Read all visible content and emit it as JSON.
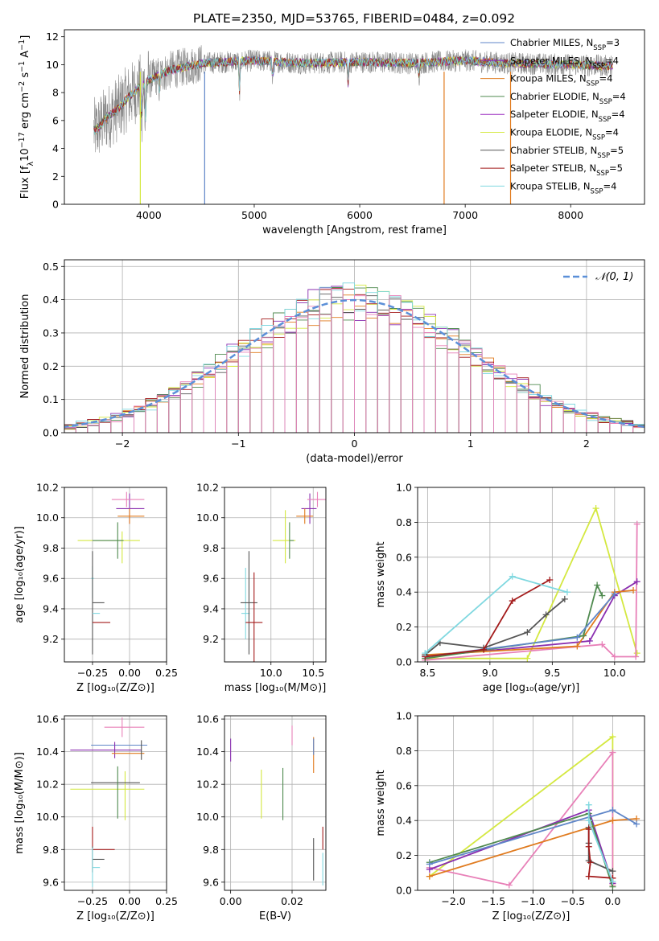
{
  "figure": {
    "title": "PLATE=2350, MJD=53765, FIBERID=0484, z=0.092"
  },
  "chart_data": [
    {
      "id": "spectrum",
      "type": "line",
      "xlabel": "wavelength [Angstrom, rest frame]",
      "ylabel": "Flux [f_λ 10^-17 erg cm^-2 s^-1 A^-1]",
      "xlim": [
        3200,
        8700
      ],
      "ylim": [
        0,
        12.5
      ],
      "xticks": [
        4000,
        5000,
        6000,
        7000,
        8000
      ],
      "yticks": [
        0,
        2,
        4,
        6,
        8,
        10,
        12
      ],
      "grid": false,
      "legend_position": "top-right",
      "data_x": [
        3500,
        3600,
        3700,
        3800,
        3900,
        4000,
        4200,
        4500,
        5000,
        5500,
        6000,
        6500,
        7000,
        7400,
        8000,
        8400
      ],
      "data_y": [
        5.3,
        6.2,
        6.8,
        7.6,
        8.3,
        8.9,
        9.6,
        10.1,
        10.3,
        10.1,
        10.2,
        10.1,
        10.3,
        10.1,
        10.0,
        9.9
      ],
      "series": [
        {
          "name": "Chabrier MILES",
          "nssp": "3",
          "color": "#5f86c8"
        },
        {
          "name": "Salpeter MILES",
          "nssp": "4",
          "color": "#8a2fb0"
        },
        {
          "name": "Kroupa MILES",
          "nssp": "4",
          "color": "#e07b1f"
        },
        {
          "name": "Chabrier ELODIE",
          "nssp": "4",
          "color": "#4f8a4f"
        },
        {
          "name": "Salpeter ELODIE",
          "nssp": "4",
          "color": "#9c2fc0"
        },
        {
          "name": "Kroupa ELODIE",
          "nssp": "4",
          "color": "#d4e840"
        },
        {
          "name": "Chabrier STELIB",
          "nssp": "5",
          "color": "#555555"
        },
        {
          "name": "Salpeter STELIB",
          "nssp": "5",
          "color": "#a31a1a"
        },
        {
          "name": "Kroupa STELIB",
          "nssp": "4",
          "color": "#80d8e0"
        }
      ]
    },
    {
      "id": "residuals",
      "type": "histogram",
      "xlabel": "(data-model)/error",
      "ylabel": "Normed distribution",
      "xlim": [
        -2.5,
        2.5
      ],
      "ylim": [
        0,
        0.52
      ],
      "xticks": [
        -2,
        -1,
        0,
        1,
        2
      ],
      "yticks": [
        0.0,
        0.1,
        0.2,
        0.3,
        0.4,
        0.5
      ],
      "grid": true,
      "legend": "𝒩(0, 1)",
      "legend_position": "top-right",
      "gauss_color": "#5b8fd8",
      "series_colors": [
        "#8a2fb0",
        "#e07b1f",
        "#4f8a4f",
        "#d4e840",
        "#555555",
        "#a31a1a",
        "#80d8e0",
        "#e880b8"
      ]
    },
    {
      "id": "age-z",
      "type": "errorbar",
      "xlabel": "Z [log10(Z/Z⊙)]",
      "ylabel": "age [log10(age/yr)]",
      "xlim": [
        -0.44,
        0.25
      ],
      "ylim": [
        9.05,
        10.2
      ],
      "xticks": [
        -0.25,
        0.0,
        0.25
      ],
      "yticks": [
        9.2,
        9.4,
        9.6,
        9.8,
        10.0,
        10.2
      ],
      "grid": true,
      "points": [
        {
          "x": 0.0,
          "xerr": [
            0.09,
            0.1
          ],
          "y": 10.06,
          "yerr": [
            0.1,
            0.1
          ],
          "color": "#8a2fb0"
        },
        {
          "x": -0.02,
          "xerr": [
            0.1,
            0.12
          ],
          "y": 10.12,
          "yerr": [
            0.05,
            0.05
          ],
          "color": "#e880b8"
        },
        {
          "x": 0.0,
          "xerr": [
            0.08,
            0.1
          ],
          "y": 10.01,
          "yerr": [
            0.05,
            0.05
          ],
          "color": "#e07b1f"
        },
        {
          "x": -0.05,
          "xerr": [
            0.3,
            0.12
          ],
          "y": 9.85,
          "yerr": [
            0.15,
            0.06
          ],
          "color": "#d4e840"
        },
        {
          "x": -0.08,
          "xerr": [
            0.17,
            0.04
          ],
          "y": 9.85,
          "yerr": [
            0.12,
            0.12
          ],
          "color": "#4f8a4f"
        },
        {
          "x": -0.25,
          "xerr": [
            0.01,
            0.01
          ],
          "y": 9.6,
          "yerr": [
            0.13,
            0.08
          ],
          "color": "#80d8e0"
        },
        {
          "x": -0.25,
          "xerr": [
            0.0,
            0.08
          ],
          "y": 9.44,
          "yerr": [
            0.34,
            0.34
          ],
          "color": "#555555"
        },
        {
          "x": -0.25,
          "xerr": [
            0.0,
            0.05
          ],
          "y": 9.37,
          "yerr": [
            0.0,
            0.0
          ],
          "color": "#80d8e0"
        },
        {
          "x": -0.25,
          "xerr": [
            0.0,
            0.12
          ],
          "y": 9.31,
          "yerr": [
            0.0,
            0.0
          ],
          "color": "#a31a1a"
        }
      ]
    },
    {
      "id": "age-mass",
      "type": "errorbar",
      "xlabel": "mass [log10(M/M⊙)]",
      "ylabel": "",
      "xlim": [
        9.45,
        10.65
      ],
      "ylim": [
        9.05,
        10.2
      ],
      "xticks": [
        10.0,
        10.5
      ],
      "yticks": [
        9.2,
        9.4,
        9.6,
        9.8,
        10.0,
        10.2
      ],
      "grid": true,
      "points": [
        {
          "x": 10.46,
          "xerr": [
            0.1,
            0.08
          ],
          "y": 10.06,
          "yerr": [
            0.1,
            0.1
          ],
          "color": "#8a2fb0"
        },
        {
          "x": 10.55,
          "xerr": [
            0.12,
            0.1
          ],
          "y": 10.12,
          "yerr": [
            0.05,
            0.05
          ],
          "color": "#e880b8"
        },
        {
          "x": 10.4,
          "xerr": [
            0.1,
            0.1
          ],
          "y": 10.01,
          "yerr": [
            0.05,
            0.05
          ],
          "color": "#e07b1f"
        },
        {
          "x": 10.17,
          "xerr": [
            0.15,
            0.12
          ],
          "y": 9.85,
          "yerr": [
            0.15,
            0.2
          ],
          "color": "#d4e840"
        },
        {
          "x": 10.22,
          "xerr": [
            0.0,
            0.05
          ],
          "y": 9.85,
          "yerr": [
            0.12,
            0.12
          ],
          "color": "#4f8a4f"
        },
        {
          "x": 9.7,
          "xerr": [
            0.05,
            0.05
          ],
          "y": 9.37,
          "yerr": [
            0.17,
            0.3
          ],
          "color": "#80d8e0"
        },
        {
          "x": 9.74,
          "xerr": [
            0.1,
            0.1
          ],
          "y": 9.44,
          "yerr": [
            0.34,
            0.34
          ],
          "color": "#555555"
        },
        {
          "x": 9.8,
          "xerr": [
            0.1,
            0.1
          ],
          "y": 9.31,
          "yerr": [
            0.33,
            0.33
          ],
          "color": "#a31a1a"
        }
      ]
    },
    {
      "id": "weight-age",
      "type": "line",
      "xlabel": "age [log10(age/yr)]",
      "ylabel": "mass weight",
      "xlim": [
        8.42,
        10.24
      ],
      "ylim": [
        0,
        1.0
      ],
      "xticks": [
        8.5,
        9.0,
        9.5,
        10.0
      ],
      "yticks": [
        0.0,
        0.2,
        0.4,
        0.6,
        0.8,
        1.0
      ],
      "grid": true,
      "series": [
        {
          "color": "#d4e840",
          "x": [
            8.48,
            9.3,
            9.85,
            10.18
          ],
          "y": [
            0.02,
            0.02,
            0.88,
            0.05
          ]
        },
        {
          "color": "#e880b8",
          "x": [
            8.48,
            9.9,
            10.0,
            10.17,
            10.18
          ],
          "y": [
            0.01,
            0.1,
            0.03,
            0.03,
            0.79
          ]
        },
        {
          "color": "#8a2fb0",
          "x": [
            8.48,
            9.8,
            10.0,
            10.18
          ],
          "y": [
            0.03,
            0.12,
            0.38,
            0.46
          ]
        },
        {
          "color": "#e07b1f",
          "x": [
            8.48,
            9.7,
            10.0,
            10.15
          ],
          "y": [
            0.04,
            0.09,
            0.4,
            0.41
          ]
        },
        {
          "color": "#4f8a4f",
          "x": [
            8.48,
            9.75,
            9.86,
            9.9
          ],
          "y": [
            0.02,
            0.15,
            0.44,
            0.38
          ]
        },
        {
          "color": "#5f86c8",
          "x": [
            8.48,
            9.7,
            10.0
          ],
          "y": [
            0.03,
            0.14,
            0.39
          ]
        },
        {
          "color": "#555555",
          "x": [
            8.48,
            8.6,
            8.95,
            9.3,
            9.45,
            9.6
          ],
          "y": [
            0.04,
            0.11,
            0.08,
            0.17,
            0.27,
            0.36
          ]
        },
        {
          "color": "#a31a1a",
          "x": [
            8.48,
            8.95,
            9.18,
            9.48
          ],
          "y": [
            0.03,
            0.07,
            0.35,
            0.47
          ]
        },
        {
          "color": "#80d8e0",
          "x": [
            8.48,
            9.18,
            9.62
          ],
          "y": [
            0.05,
            0.49,
            0.4
          ]
        }
      ]
    },
    {
      "id": "mass-z",
      "type": "errorbar",
      "xlabel": "Z [log10(Z/Z⊙)]",
      "ylabel": "mass [log10(M/M⊙)]",
      "xlim": [
        -0.44,
        0.25
      ],
      "ylim": [
        9.55,
        10.62
      ],
      "xticks": [
        -0.25,
        0.0,
        0.25
      ],
      "yticks": [
        9.6,
        9.8,
        10.0,
        10.2,
        10.4,
        10.6
      ],
      "grid": true,
      "points": [
        {
          "x": -0.08,
          "xerr": [
            0.18,
            0.2
          ],
          "y": 10.44,
          "yerr": [
            0.0,
            0.0
          ],
          "color": "#5f86c8"
        },
        {
          "x": -0.1,
          "xerr": [
            0.3,
            0.18
          ],
          "y": 10.41,
          "yerr": [
            0.05,
            0.05
          ],
          "color": "#8a2fb0"
        },
        {
          "x": -0.05,
          "xerr": [
            0.12,
            0.15
          ],
          "y": 10.55,
          "yerr": [
            0.06,
            0.06
          ],
          "color": "#e880b8"
        },
        {
          "x": 0.0,
          "xerr": [
            0.12,
            0.1
          ],
          "y": 10.39,
          "yerr": [
            0.0,
            0.0
          ],
          "color": "#e07b1f"
        },
        {
          "x": 0.08,
          "xerr": [
            0.0,
            0.0
          ],
          "y": 10.41,
          "yerr": [
            0.06,
            0.06
          ],
          "color": "#555555"
        },
        {
          "x": -0.05,
          "xerr": [
            0.35,
            0.15
          ],
          "y": 10.17,
          "yerr": [
            0.0,
            0.0
          ],
          "color": "#d4e840"
        },
        {
          "x": -0.03,
          "xerr": [
            0.0,
            0.0
          ],
          "y": 10.13,
          "yerr": [
            0.15,
            0.15
          ],
          "color": "#d4e840"
        },
        {
          "x": -0.08,
          "xerr": [
            0.18,
            0.15
          ],
          "y": 10.21,
          "yerr": [
            0.0,
            0.0
          ],
          "color": "#555555"
        },
        {
          "x": -0.08,
          "xerr": [
            0.0,
            0.0
          ],
          "y": 10.15,
          "yerr": [
            0.16,
            0.16
          ],
          "color": "#4f8a4f"
        },
        {
          "x": -0.25,
          "xerr": [
            0.0,
            0.15
          ],
          "y": 9.8,
          "yerr": [
            0.14,
            0.14
          ],
          "color": "#a31a1a"
        },
        {
          "x": -0.25,
          "xerr": [
            0.0,
            0.08
          ],
          "y": 9.74,
          "yerr": [
            0.08,
            0.08
          ],
          "color": "#555555"
        },
        {
          "x": -0.25,
          "xerr": [
            0.0,
            0.05
          ],
          "y": 9.69,
          "yerr": [
            0.12,
            0.12
          ],
          "color": "#80d8e0"
        }
      ]
    },
    {
      "id": "mass-ebv",
      "type": "errorbar",
      "xlabel": "E(B-V)",
      "ylabel": "",
      "xlim": [
        -0.002,
        0.031
      ],
      "ylim": [
        9.55,
        10.62
      ],
      "xticks": [
        0.0,
        0.02
      ],
      "yticks": [
        9.6,
        9.8,
        10.0,
        10.2,
        10.4,
        10.6
      ],
      "grid": true,
      "points": [
        {
          "x": 0.0,
          "xerr": [
            0,
            0
          ],
          "y": 10.41,
          "yerr": [
            0.07,
            0.07
          ],
          "color": "#8a2fb0"
        },
        {
          "x": 0.02,
          "xerr": [
            0,
            0
          ],
          "y": 10.5,
          "yerr": [
            0.06,
            0.06
          ],
          "color": "#e880b8"
        },
        {
          "x": 0.027,
          "xerr": [
            0,
            0
          ],
          "y": 10.38,
          "yerr": [
            0.11,
            0.11
          ],
          "color": "#e07b1f"
        },
        {
          "x": 0.027,
          "xerr": [
            0,
            0
          ],
          "y": 10.43,
          "yerr": [
            0.05,
            0.05
          ],
          "color": "#5f86c8"
        },
        {
          "x": 0.01,
          "xerr": [
            0,
            0
          ],
          "y": 10.14,
          "yerr": [
            0.15,
            0.15
          ],
          "color": "#d4e840"
        },
        {
          "x": 0.017,
          "xerr": [
            0,
            0
          ],
          "y": 10.14,
          "yerr": [
            0.16,
            0.16
          ],
          "color": "#4f8a4f"
        },
        {
          "x": 0.027,
          "xerr": [
            0,
            0
          ],
          "y": 9.74,
          "yerr": [
            0.13,
            0.13
          ],
          "color": "#555555"
        },
        {
          "x": 0.03,
          "xerr": [
            0,
            0
          ],
          "y": 9.87,
          "yerr": [
            0.07,
            0.07
          ],
          "color": "#a31a1a"
        },
        {
          "x": 0.03,
          "xerr": [
            0,
            0
          ],
          "y": 9.68,
          "yerr": [
            0.1,
            0.1
          ],
          "color": "#80d8e0"
        }
      ]
    },
    {
      "id": "weight-z",
      "type": "line",
      "xlabel": "Z [log10(Z/Z⊙)]",
      "ylabel": "mass weight",
      "xlim": [
        -2.45,
        0.4
      ],
      "ylim": [
        0,
        1.0
      ],
      "xticks": [
        -2.0,
        -1.5,
        -1.0,
        -0.5,
        0.0
      ],
      "yticks": [
        0.0,
        0.2,
        0.4,
        0.6,
        0.8,
        1.0
      ],
      "grid": true,
      "series": [
        {
          "color": "#d4e840",
          "x": [
            -2.3,
            0.0,
            0.0
          ],
          "y": [
            0.08,
            0.88,
            0.03
          ]
        },
        {
          "color": "#e880b8",
          "x": [
            -2.3,
            -1.3,
            0.0,
            0.0
          ],
          "y": [
            0.13,
            0.03,
            0.79,
            0.03
          ]
        },
        {
          "color": "#8a2fb0",
          "x": [
            -2.3,
            -0.3,
            0.0
          ],
          "y": [
            0.12,
            0.46,
            0.04
          ]
        },
        {
          "color": "#e07b1f",
          "x": [
            -2.3,
            0.0,
            0.3
          ],
          "y": [
            0.08,
            0.4,
            0.41
          ]
        },
        {
          "color": "#4f8a4f",
          "x": [
            -2.3,
            -0.3,
            0.0
          ],
          "y": [
            0.16,
            0.44,
            0.02
          ]
        },
        {
          "color": "#5f86c8",
          "x": [
            -2.3,
            0.0,
            0.3
          ],
          "y": [
            0.15,
            0.46,
            0.38
          ]
        },
        {
          "color": "#555555",
          "x": [
            -0.3,
            -0.3,
            -0.3,
            0.0
          ],
          "y": [
            0.36,
            0.27,
            0.17,
            0.11
          ]
        },
        {
          "color": "#a31a1a",
          "x": [
            -0.3,
            -0.3,
            -0.28,
            -0.3,
            0.0
          ],
          "y": [
            0.35,
            0.25,
            0.16,
            0.08,
            0.07
          ]
        },
        {
          "color": "#80d8e0",
          "x": [
            -0.3,
            -0.3,
            0.0
          ],
          "y": [
            0.49,
            0.4,
            0.05
          ]
        }
      ]
    }
  ]
}
